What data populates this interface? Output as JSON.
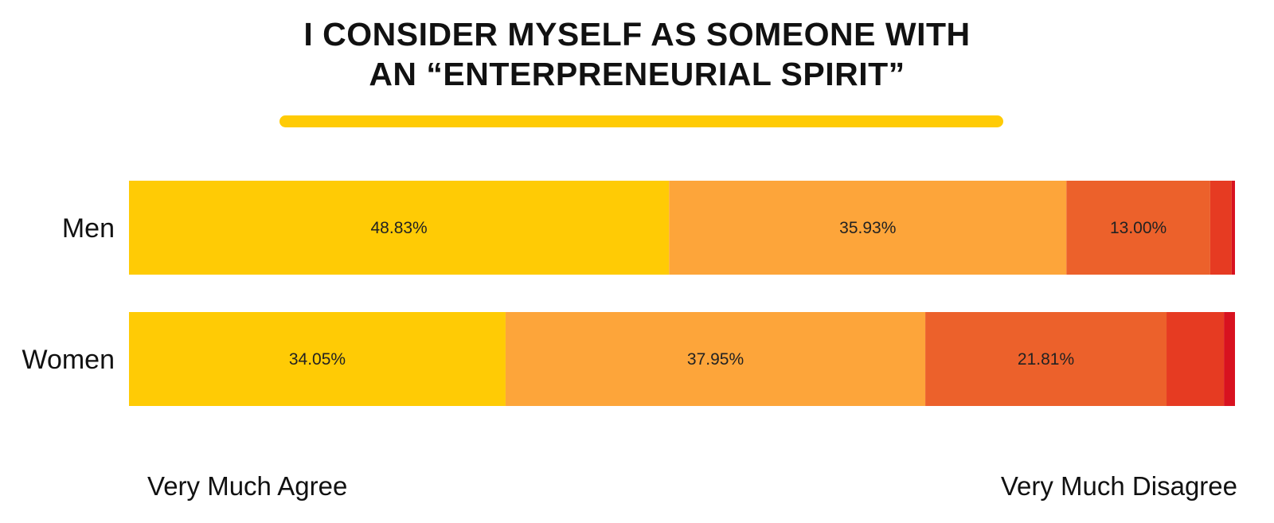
{
  "chart_data": {
    "type": "bar",
    "orientation": "horizontal",
    "stacked": true,
    "title_lines": [
      "I CONSIDER MYSELF AS SOMEONE WITH",
      "AN “ENTERPRENEURIAL SPIRIT”"
    ],
    "categories": [
      "Men",
      "Women"
    ],
    "series": [
      {
        "values": [
          48.83,
          34.05
        ],
        "labels": [
          "48.83%",
          "34.05%"
        ],
        "color": "#FFCB05"
      },
      {
        "values": [
          35.93,
          37.95
        ],
        "labels": [
          "35.93%",
          "37.95%"
        ],
        "color": "#FDA53A"
      },
      {
        "values": [
          13.0,
          21.81
        ],
        "labels": [
          "13.00%",
          "21.81%"
        ],
        "color": "#EC612B"
      },
      {
        "values": [
          1.94,
          5.19
        ],
        "labels": [
          "",
          ""
        ],
        "color": "#E63B22"
      },
      {
        "values": [
          0.3,
          1.0
        ],
        "labels": [
          "",
          ""
        ],
        "color": "#D8121F"
      }
    ],
    "xlim": [
      0,
      100
    ],
    "scale_labels": {
      "left": "Very Much Agree",
      "right": "Very Much Disagree"
    },
    "grid": false,
    "legend": "none"
  },
  "colors": {
    "accent": "#FFCB05",
    "text": "#111111"
  }
}
